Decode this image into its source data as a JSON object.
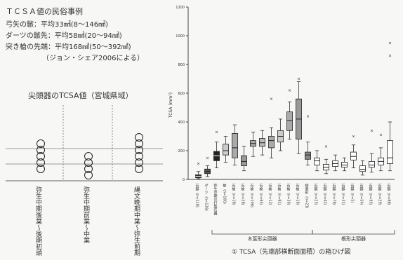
{
  "info": {
    "title": "ＴＣＳＡ値の民俗事例",
    "line1": "弓矢の鏃：平均33㎟(8～146㎟)",
    "line2": "ダーツの鏃先：平均58㎟(20～94㎟)",
    "line3": "突き槍の先端：平均168㎟(50～392㎟)",
    "line4": "（ジョン・シェア2006による）"
  },
  "left_panel": {
    "title": "尖頭器のTCSA値（宮城県域）",
    "columns": [
      {
        "label": "弥生中期後葉～後期初頭",
        "circles": [
          4,
          5,
          3,
          2,
          1
        ]
      },
      {
        "label": "弥生中期前葉～中葉",
        "circles": [
          3,
          2,
          1,
          0
        ]
      },
      {
        "label": "縄文晩期中葉～弥生前期",
        "circles": [
          6,
          5,
          4,
          3,
          2,
          1
        ]
      }
    ]
  },
  "chart_data": {
    "type": "boxplot",
    "ylabel": "TCSA (mm²)",
    "y_ticks": [
      0,
      200,
      400,
      600,
      800,
      1000,
      1200
    ],
    "ylim": [
      0,
      1200
    ],
    "x_labels": [
      "石鏃（n=118）",
      "ダーツ（n=139）",
      "弥生中期の打製石器",
      "槍（n=100）",
      "石槍（n=18）",
      "石槍（n=28）",
      "石槍（n=106）",
      "石槍（n=65）",
      "石槍（n=13）",
      "石槍（n=81）",
      "石槍（n=30）",
      "石槍（n=16）",
      "柳葉形（n=23）",
      "石鏃（n=25）",
      "石鏃（n=42）",
      "石鏃（n=78）",
      "石鏃（n=31）",
      "石鏃（n=5）",
      "石鏃（n=54）",
      "石鏃（n=93）",
      "石鏃（n=29）",
      "石鏃（n=88）"
    ],
    "boxes": [
      {
        "min": 5,
        "q1": 12,
        "median": 22,
        "q3": 32,
        "max": 55,
        "fill": "#333333"
      },
      {
        "min": 20,
        "q1": 40,
        "median": 55,
        "q3": 72,
        "max": 95,
        "fill": "#555555"
      },
      {
        "min": 80,
        "q1": 130,
        "median": 165,
        "q3": 195,
        "max": 260,
        "fill": "#222222"
      },
      {
        "min": 120,
        "q1": 170,
        "median": 200,
        "q3": 245,
        "max": 300,
        "fill": "#cccccc"
      },
      {
        "min": 100,
        "q1": 150,
        "median": 220,
        "q3": 320,
        "max": 380,
        "fill": "#aaaaaa"
      },
      {
        "min": 60,
        "q1": 95,
        "median": 125,
        "q3": 165,
        "max": 230,
        "fill": "#999999"
      },
      {
        "min": 160,
        "q1": 230,
        "median": 250,
        "q3": 270,
        "max": 330,
        "fill": "#aaaaaa"
      },
      {
        "min": 170,
        "q1": 230,
        "median": 255,
        "q3": 285,
        "max": 340,
        "fill": "#bbbbbb"
      },
      {
        "min": 150,
        "q1": 220,
        "median": 270,
        "q3": 300,
        "max": 360,
        "fill": "#aaaaaa"
      },
      {
        "min": 200,
        "q1": 260,
        "median": 300,
        "q3": 340,
        "max": 420,
        "fill": "#cccccc"
      },
      {
        "min": 280,
        "q1": 340,
        "median": 410,
        "q3": 470,
        "max": 540,
        "fill": "#aaaaaa"
      },
      {
        "min": 180,
        "q1": 280,
        "median": 420,
        "q3": 560,
        "max": 680,
        "fill": "#999999"
      },
      {
        "min": 100,
        "q1": 140,
        "median": 170,
        "q3": 190,
        "max": 260,
        "fill": "#888888"
      },
      {
        "min": 60,
        "q1": 100,
        "median": 130,
        "q3": 150,
        "max": 200,
        "fill": "#ffffff"
      },
      {
        "min": 40,
        "q1": 65,
        "median": 85,
        "q3": 105,
        "max": 140,
        "fill": "#ffffff"
      },
      {
        "min": 60,
        "q1": 90,
        "median": 110,
        "q3": 130,
        "max": 170,
        "fill": "#ffffff"
      },
      {
        "min": 60,
        "q1": 85,
        "median": 100,
        "q3": 120,
        "max": 150,
        "fill": "#ffffff"
      },
      {
        "min": 80,
        "q1": 135,
        "median": 160,
        "q3": 190,
        "max": 240,
        "fill": "#ffffff"
      },
      {
        "min": 30,
        "q1": 55,
        "median": 70,
        "q3": 95,
        "max": 130,
        "fill": "#ffffff"
      },
      {
        "min": 50,
        "q1": 85,
        "median": 100,
        "q3": 125,
        "max": 180,
        "fill": "#ffffff"
      },
      {
        "min": 60,
        "q1": 100,
        "median": 125,
        "q3": 150,
        "max": 220,
        "fill": "#ffffff"
      },
      {
        "min": 60,
        "q1": 110,
        "median": 150,
        "q3": 270,
        "max": 400,
        "fill": "#ffffff"
      }
    ],
    "outliers": [
      {
        "i": 0,
        "v": 110
      },
      {
        "i": 1,
        "v": 150
      },
      {
        "i": 2,
        "v": 330
      },
      {
        "i": 8,
        "v": 560
      },
      {
        "i": 10,
        "v": 620
      },
      {
        "i": 11,
        "v": 700
      },
      {
        "i": 12,
        "v": 440
      },
      {
        "i": 14,
        "v": 230
      },
      {
        "i": 17,
        "v": 300
      },
      {
        "i": 19,
        "v": 340
      },
      {
        "i": 20,
        "v": 310
      },
      {
        "i": 21,
        "v": 860
      },
      {
        "i": 21,
        "v": 950
      }
    ],
    "groups": [
      {
        "label": "木葉形尖頭器",
        "from": 2,
        "to": 12
      },
      {
        "label": "根形尖頭器",
        "from": 13,
        "to": 21
      }
    ],
    "caption": "① TCSA（先端部横断面面積）の箱ひげ図"
  }
}
